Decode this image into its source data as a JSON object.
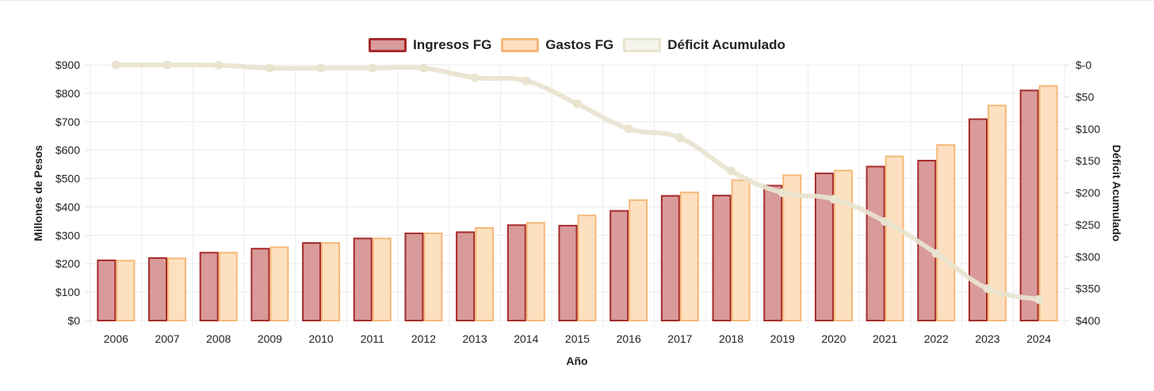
{
  "chart_data": {
    "type": "bar",
    "title": "",
    "xlabel": "Año",
    "ylabel": "Millones de Pesos",
    "y2label": "Déficit Acumulado",
    "ylim": [
      0,
      900
    ],
    "y2lim": [
      0,
      400
    ],
    "categories": [
      "2006",
      "2007",
      "2008",
      "2009",
      "2010",
      "2011",
      "2012",
      "2013",
      "2014",
      "2015",
      "2016",
      "2017",
      "2018",
      "2019",
      "2020",
      "2021",
      "2022",
      "2023",
      "2024"
    ],
    "y_ticks": [
      "$0",
      "$100",
      "$200",
      "$300",
      "$400",
      "$500",
      "$600",
      "$700",
      "$800",
      "$900"
    ],
    "y2_ticks": [
      "$400",
      "$350",
      "$300",
      "$250",
      "$200",
      "$150",
      "$100",
      "$50",
      "$-0"
    ],
    "series": [
      {
        "name": "Ingresos FG",
        "type": "bar",
        "axis": "left",
        "color": "#a62b2b",
        "fill": "#d99a9a",
        "values": [
          212,
          220,
          239,
          253,
          273,
          289,
          307,
          311,
          336,
          334,
          386,
          439,
          440,
          475,
          518,
          542,
          563,
          709,
          810
        ]
      },
      {
        "name": "Gastos FG",
        "type": "bar",
        "axis": "left",
        "color": "#f5b878",
        "fill": "#fde0c0",
        "values": [
          211,
          219,
          239,
          258,
          273,
          289,
          307,
          326,
          344,
          370,
          424,
          451,
          494,
          512,
          528,
          578,
          618,
          757,
          826
        ]
      },
      {
        "name": "Déficit Acumulado",
        "type": "line",
        "axis": "right",
        "color": "#e8e4cf",
        "fill": "#f6f5ee",
        "values": [
          0,
          0,
          0.5,
          5,
          5,
          5,
          5,
          20,
          25,
          61,
          100,
          114,
          166,
          200,
          210,
          245,
          295,
          350,
          367
        ]
      }
    ],
    "legend": "top-center",
    "grid": true
  }
}
